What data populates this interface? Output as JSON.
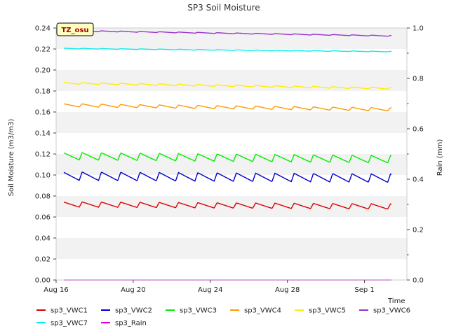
{
  "chart_data": {
    "type": "line",
    "title": "SP3 Soil Moisture",
    "xlabel": "Time",
    "ylabel": "Soil Moisture (m3/m3)",
    "y2label": "Rain (mm)",
    "badge": "TZ_osu",
    "xlim": [
      0,
      18.2
    ],
    "ylim": [
      0,
      0.24
    ],
    "y2lim": [
      0,
      1.0
    ],
    "x_ticks": [
      {
        "value": 0,
        "label": "Aug 16"
      },
      {
        "value": 4,
        "label": "Aug 20"
      },
      {
        "value": 8,
        "label": "Aug 24"
      },
      {
        "value": 12,
        "label": "Aug 28"
      },
      {
        "value": 16,
        "label": "Sep 1"
      }
    ],
    "y_ticks": [
      0.0,
      0.02,
      0.04,
      0.06,
      0.08,
      0.1,
      0.12,
      0.14,
      0.16,
      0.18,
      0.2,
      0.22,
      0.24
    ],
    "y_tick_labels": [
      "0.00",
      "0.02",
      "0.04",
      "0.06",
      "0.08",
      "0.10",
      "0.12",
      "0.14",
      "0.16",
      "0.18",
      "0.20",
      "0.22",
      "0.24"
    ],
    "y2_ticks": [
      0.0,
      0.2,
      0.4,
      0.6,
      0.8,
      1.0
    ],
    "y2_tick_labels": [
      "0.0",
      "0.2",
      "0.4",
      "0.6",
      "0.8",
      "1.0"
    ],
    "grid": "horizontal-bands",
    "legend_position": "bottom",
    "x_start": 0.4,
    "x_end": 17.4,
    "series": [
      {
        "name": "sp3_VWC1",
        "color": "#dd0000",
        "start": 0.072,
        "end": 0.07,
        "amp": 0.0025
      },
      {
        "name": "sp3_VWC2",
        "color": "#0000cc",
        "start": 0.099,
        "end": 0.097,
        "amp": 0.004
      },
      {
        "name": "sp3_VWC3",
        "color": "#00ee00",
        "start": 0.118,
        "end": 0.115,
        "amp": 0.0035
      },
      {
        "name": "sp3_VWC4",
        "color": "#ff9900",
        "start": 0.1665,
        "end": 0.1625,
        "amp": 0.0015
      },
      {
        "name": "sp3_VWC5",
        "color": "#ffee00",
        "start": 0.1875,
        "end": 0.1825,
        "amp": 0.0008
      },
      {
        "name": "sp3_VWC6",
        "color": "#9933cc",
        "start": 0.2375,
        "end": 0.2325,
        "amp": 0.0004
      },
      {
        "name": "sp3_VWC7",
        "color": "#00eeee",
        "start": 0.2205,
        "end": 0.2175,
        "amp": 0.0003
      },
      {
        "name": "sp3_Rain",
        "color": "#dd00dd",
        "start": 0.0,
        "end": 0.0,
        "amp": 0.0,
        "axis": "right"
      }
    ]
  }
}
